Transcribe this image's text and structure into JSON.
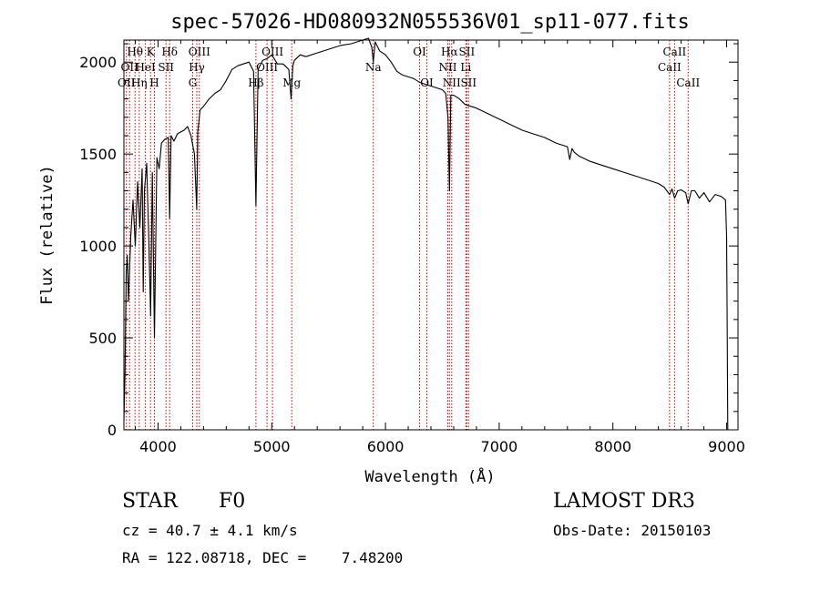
{
  "chart_data": {
    "type": "line",
    "title": "spec-57026-HD080932N055536V01_sp11-077.fits",
    "xlabel": "Wavelength (Å)",
    "ylabel": "Flux (relative)",
    "xlim": [
      3700,
      9100
    ],
    "ylim": [
      0,
      2120
    ],
    "x_ticks": [
      4000,
      5000,
      6000,
      7000,
      8000,
      9000
    ],
    "x_tick_labels": [
      "4000",
      "5000",
      "6000",
      "7000",
      "8000",
      "9000"
    ],
    "y_ticks": [
      0,
      500,
      1000,
      1500,
      2000
    ],
    "y_tick_labels": [
      "0",
      "500",
      "1000",
      "1500",
      "2000"
    ],
    "series": [
      {
        "name": "spectrum",
        "color": "#000000",
        "x": [
          3700,
          3710,
          3720,
          3730,
          3740,
          3760,
          3780,
          3800,
          3820,
          3840,
          3860,
          3870,
          3880,
          3900,
          3920,
          3935,
          3950,
          3968,
          3990,
          4010,
          4030,
          4060,
          4090,
          4102,
          4115,
          4140,
          4170,
          4200,
          4230,
          4260,
          4290,
          4320,
          4340,
          4350,
          4370,
          4400,
          4450,
          4500,
          4550,
          4600,
          4650,
          4700,
          4750,
          4800,
          4840,
          4861,
          4880,
          4920,
          4960,
          5000,
          5050,
          5100,
          5150,
          5170,
          5185,
          5200,
          5250,
          5300,
          5400,
          5500,
          5600,
          5700,
          5800,
          5850,
          5880,
          5893,
          5910,
          5950,
          6000,
          6050,
          6100,
          6150,
          6200,
          6250,
          6300,
          6350,
          6400,
          6450,
          6500,
          6530,
          6550,
          6563,
          6575,
          6600,
          6650,
          6700,
          6750,
          6800,
          6900,
          7000,
          7100,
          7200,
          7300,
          7400,
          7500,
          7600,
          7620,
          7640,
          7660,
          7700,
          7800,
          7900,
          8000,
          8100,
          8200,
          8300,
          8400,
          8450,
          8498,
          8520,
          8542,
          8570,
          8600,
          8640,
          8662,
          8690,
          8720,
          8760,
          8800,
          8850,
          8900,
          8950,
          8970,
          8990,
          9000,
          9005,
          9010
        ],
        "y": [
          50,
          300,
          850,
          950,
          700,
          1050,
          1250,
          1000,
          1350,
          1100,
          1420,
          750,
          1300,
          1450,
          1000,
          620,
          1400,
          500,
          1480,
          1420,
          1560,
          1580,
          1590,
          1150,
          1600,
          1570,
          1610,
          1620,
          1630,
          1650,
          1600,
          1500,
          1200,
          1620,
          1740,
          1760,
          1800,
          1830,
          1850,
          1900,
          1960,
          1980,
          1990,
          2000,
          1950,
          1220,
          1960,
          2010,
          2020,
          2040,
          1990,
          1990,
          1960,
          1800,
          1980,
          2010,
          2040,
          2030,
          2050,
          2070,
          2090,
          2100,
          2120,
          2130,
          2080,
          2000,
          2110,
          2060,
          2040,
          2000,
          1950,
          1930,
          1920,
          1910,
          1890,
          1880,
          1870,
          1860,
          1850,
          1830,
          1700,
          1300,
          1820,
          1820,
          1800,
          1770,
          1760,
          1750,
          1720,
          1690,
          1660,
          1630,
          1610,
          1590,
          1560,
          1540,
          1470,
          1530,
          1510,
          1490,
          1460,
          1440,
          1420,
          1400,
          1380,
          1360,
          1340,
          1320,
          1280,
          1310,
          1260,
          1300,
          1305,
          1290,
          1230,
          1300,
          1300,
          1260,
          1290,
          1240,
          1280,
          1270,
          1260,
          1250,
          1050,
          600,
          0
        ]
      }
    ],
    "line_markers": [
      {
        "wl": 3722,
        "row": 2,
        "label": "OII"
      },
      {
        "wl": 3750,
        "row": 1,
        "label": "OII"
      },
      {
        "wl": 3798,
        "row": 0,
        "label": "Hθ"
      },
      {
        "wl": 3835,
        "row": 2,
        "label": "Hη"
      },
      {
        "wl": 3889,
        "row": 1,
        "label": "HeI"
      },
      {
        "wl": 3934,
        "row": 0,
        "label": "K"
      },
      {
        "wl": 3968,
        "row": 2,
        "label": "H"
      },
      {
        "wl": 4070,
        "row": 1,
        "label": "SII"
      },
      {
        "wl": 4102,
        "row": 0,
        "label": "Hδ"
      },
      {
        "wl": 4305,
        "row": 2,
        "label": "G"
      },
      {
        "wl": 4341,
        "row": 1,
        "label": "Hγ"
      },
      {
        "wl": 4363,
        "row": 0,
        "label": "OIII"
      },
      {
        "wl": 4861,
        "row": 2,
        "label": "Hβ"
      },
      {
        "wl": 4959,
        "row": 1,
        "label": "OIII"
      },
      {
        "wl": 5007,
        "row": 0,
        "label": "OIII"
      },
      {
        "wl": 5176,
        "row": 2,
        "label": "Mg"
      },
      {
        "wl": 5893,
        "row": 1,
        "label": "Na"
      },
      {
        "wl": 6300,
        "row": 0,
        "label": "OI"
      },
      {
        "wl": 6364,
        "row": 2,
        "label": "OI"
      },
      {
        "wl": 6548,
        "row": 1,
        "label": "NII"
      },
      {
        "wl": 6563,
        "row": 0,
        "label": "Hα"
      },
      {
        "wl": 6583,
        "row": 2,
        "label": "NII"
      },
      {
        "wl": 6707,
        "row": 1,
        "label": "Li"
      },
      {
        "wl": 6716,
        "row": 0,
        "label": "SII"
      },
      {
        "wl": 6731,
        "row": 2,
        "label": "SII"
      },
      {
        "wl": 8498,
        "row": 1,
        "label": "CaII"
      },
      {
        "wl": 8542,
        "row": 0,
        "label": "CaII"
      },
      {
        "wl": 8662,
        "row": 2,
        "label": "CaII"
      }
    ],
    "marker_color": "#cc0000"
  },
  "info": {
    "object_class": "STAR",
    "subclass": "F0",
    "survey": "LAMOST DR3",
    "cz_line": "cz = 40.7 ± 4.1 km/s",
    "obs_date_line": "Obs-Date: 20150103",
    "radec_line": "RA = 122.08718, DEC =    7.48200"
  }
}
